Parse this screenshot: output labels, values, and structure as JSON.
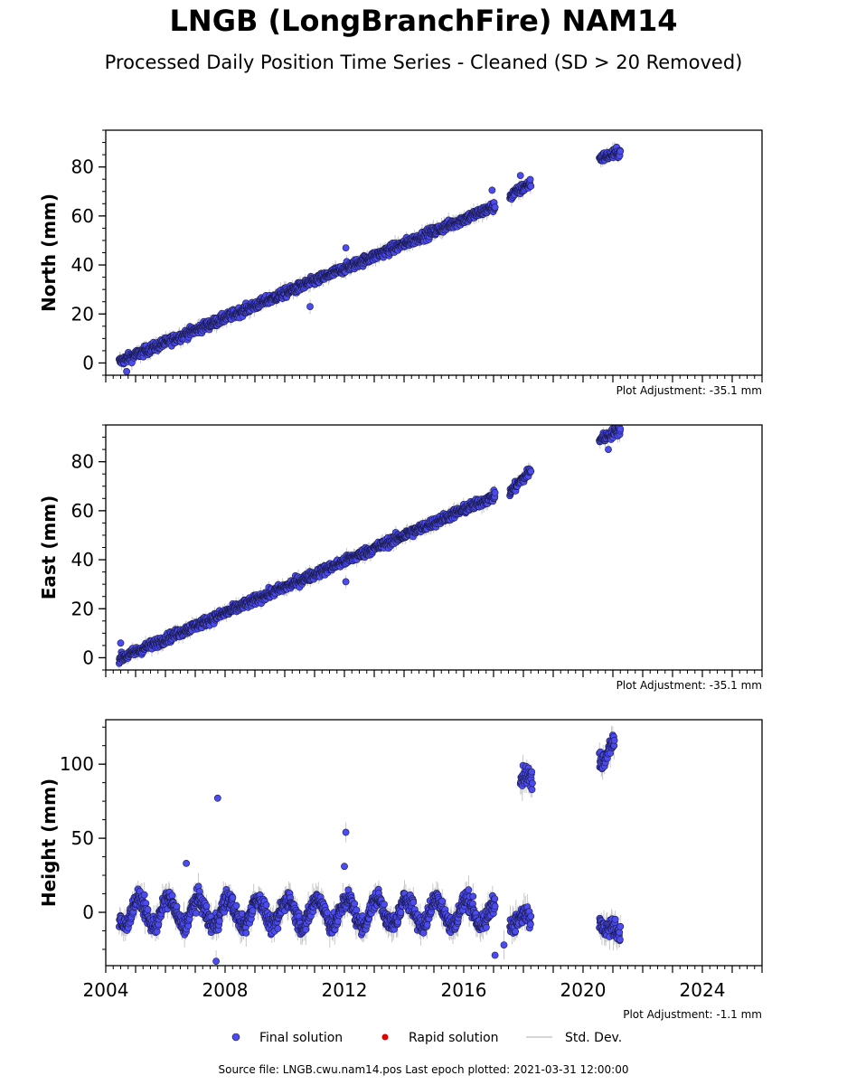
{
  "title": "LNGB (LongBranchFire) NAM14",
  "subtitle": "Processed Daily Position Time Series - Cleaned (SD > 20 Removed)",
  "footer": "Source file: LNGB.cwu.nam14.pos  Last epoch plotted: 2021-03-31 12:00:00",
  "legend": {
    "final": "Final solution",
    "rapid": "Rapid solution",
    "std": "Std. Dev."
  },
  "colors": {
    "final": "#4b4bf0",
    "final_edge": "#1a1a4a",
    "rapid": "#e00000",
    "std": "#c8c8c8"
  },
  "chart_data": [
    {
      "type": "scatter",
      "panel": "north",
      "ylabel": "North (mm)",
      "adjustment": "Plot Adjustment: -35.1 mm",
      "xlim": [
        2004.0,
        2026.0
      ],
      "ylim": [
        -5,
        95
      ],
      "yticks": [
        0,
        20,
        40,
        60,
        80
      ],
      "segments": [
        {
          "x": [
            2004.45,
            2017.05
          ],
          "y": [
            0.5,
            64.0
          ]
        },
        {
          "x": [
            2017.55,
            2018.25
          ],
          "y": [
            68.0,
            73.5
          ]
        },
        {
          "x": [
            2020.55,
            2021.25
          ],
          "y": [
            83.5,
            86.0
          ]
        }
      ],
      "outliers": [
        [
          2012.05,
          47
        ],
        [
          2010.85,
          23
        ],
        [
          2004.7,
          -3.5
        ],
        [
          2016.95,
          70.5
        ],
        [
          2017.9,
          76.5
        ]
      ]
    },
    {
      "type": "scatter",
      "panel": "east",
      "ylabel": "East (mm)",
      "adjustment": "Plot Adjustment: -35.1 mm",
      "xlim": [
        2004.0,
        2026.0
      ],
      "ylim": [
        -5,
        95
      ],
      "yticks": [
        0,
        20,
        40,
        60,
        80
      ],
      "segments": [
        {
          "x": [
            2004.45,
            2017.05
          ],
          "y": [
            -0.5,
            66.0
          ]
        },
        {
          "x": [
            2017.55,
            2018.25
          ],
          "y": [
            67.5,
            76.5
          ]
        },
        {
          "x": [
            2020.55,
            2021.25
          ],
          "y": [
            89.0,
            93.0
          ]
        }
      ],
      "outliers": [
        [
          2004.5,
          6
        ],
        [
          2012.05,
          31
        ],
        [
          2020.85,
          85
        ]
      ]
    },
    {
      "type": "scatter",
      "panel": "height",
      "ylabel": "Height (mm)",
      "adjustment": "Plot Adjustment: -1.1 mm",
      "xlim": [
        2004.0,
        2026.0
      ],
      "ylim": [
        -36,
        130
      ],
      "yticks": [
        0,
        50,
        100
      ],
      "xticks": [
        2004,
        2008,
        2012,
        2016,
        2020,
        2024
      ],
      "segments": [
        {
          "x": [
            2004.45,
            2017.05
          ],
          "y": [
            0.0,
            0.0
          ],
          "seasonal": 9
        },
        {
          "x": [
            2017.55,
            2018.25
          ],
          "y": [
            -5.0,
            -5.0
          ],
          "seasonal": 5
        },
        {
          "x": [
            2017.9,
            2018.3
          ],
          "y": [
            88.0,
            86.0
          ],
          "seasonal": 6
        },
        {
          "x": [
            2020.55,
            2021.05
          ],
          "y": [
            110.0,
            110.0
          ],
          "seasonal": 8
        },
        {
          "x": [
            2020.55,
            2021.25
          ],
          "y": [
            -5.0,
            -18.0
          ],
          "seasonal": 4
        }
      ],
      "outliers": [
        [
          2007.75,
          77
        ],
        [
          2012.05,
          54
        ],
        [
          2012.0,
          31
        ],
        [
          2007.7,
          -33
        ],
        [
          2006.7,
          33
        ],
        [
          2017.35,
          -22
        ],
        [
          2017.05,
          -29
        ]
      ]
    }
  ]
}
